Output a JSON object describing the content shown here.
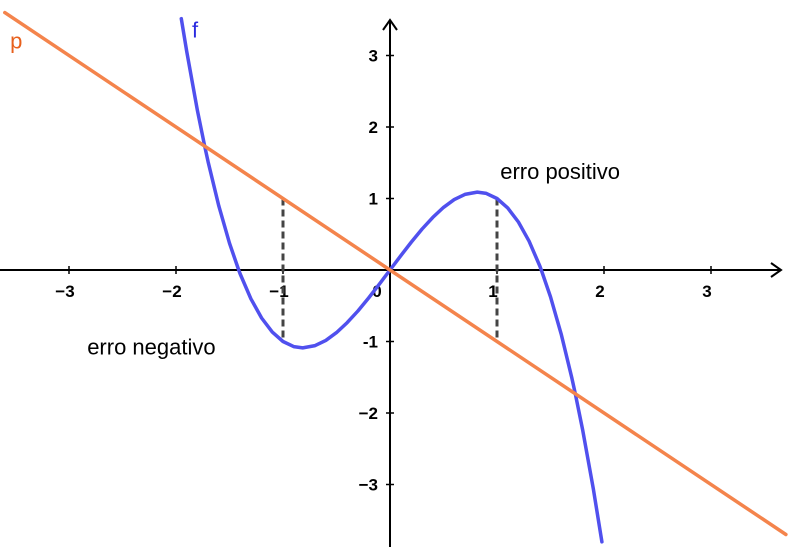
{
  "chart_data": {
    "type": "line",
    "xlim": [
      -3.5,
      3.6
    ],
    "ylim": [
      -3.6,
      3.5
    ],
    "grid": false,
    "x_ticks": [
      {
        "value": -3,
        "label": "−3"
      },
      {
        "value": -2,
        "label": "−2"
      },
      {
        "value": -1,
        "label": "−1"
      },
      {
        "value": 0,
        "label": "0"
      },
      {
        "value": 1,
        "label": "1"
      },
      {
        "value": 2,
        "label": "2"
      },
      {
        "value": 3,
        "label": "3"
      }
    ],
    "y_ticks": [
      {
        "value": 3,
        "label": "3"
      },
      {
        "value": 2,
        "label": "2"
      },
      {
        "value": 1,
        "label": "1"
      },
      {
        "value": -1,
        "label": "-1"
      },
      {
        "value": -2,
        "label": "−2"
      },
      {
        "value": -3,
        "label": "−3"
      }
    ],
    "series": [
      {
        "name": "f",
        "color": "#5050ee",
        "x": [
          -1.95,
          -1.9,
          -1.8,
          -1.732,
          -1.7,
          -1.6,
          -1.5,
          -1.414,
          -1.4,
          -1.3,
          -1.2,
          -1.1,
          -1.0,
          -0.9,
          -0.816,
          -0.7,
          -0.6,
          -0.5,
          -0.4,
          -0.3,
          -0.2,
          -0.1,
          0.0,
          0.1,
          0.2,
          0.3,
          0.4,
          0.5,
          0.6,
          0.7,
          0.816,
          0.9,
          1.0,
          1.1,
          1.2,
          1.3,
          1.4,
          1.414,
          1.5,
          1.6,
          1.7,
          1.732,
          1.8,
          1.9,
          1.98
        ],
        "y": [
          3.515,
          3.059,
          2.232,
          1.732,
          1.513,
          0.896,
          0.375,
          0.0,
          -0.056,
          -0.403,
          -0.672,
          -0.869,
          -1.0,
          -1.072,
          -1.089,
          -1.057,
          -0.984,
          -0.875,
          -0.736,
          -0.573,
          -0.392,
          -0.199,
          0.0,
          0.199,
          0.392,
          0.573,
          0.736,
          0.875,
          0.984,
          1.057,
          1.089,
          1.072,
          1.0,
          0.869,
          0.672,
          0.403,
          0.056,
          0.0,
          -0.375,
          -0.896,
          -1.513,
          -1.732,
          -2.232,
          -3.059,
          -3.802
        ]
      },
      {
        "name": "p",
        "color": "#f4844c",
        "x": [
          -3.6,
          3.7
        ],
        "y": [
          3.6,
          -3.7
        ]
      }
    ],
    "error_segments": [
      {
        "x": -1,
        "y1": 1,
        "y2": -1
      },
      {
        "x": 1,
        "y1": 1,
        "y2": -1
      }
    ],
    "annotations": [
      {
        "text": "erro positivo",
        "x": 1.03,
        "y": 1.27
      },
      {
        "text": "erro negativo",
        "x": -2.83,
        "y": -1.18
      }
    ],
    "curve_labels": [
      {
        "text": "f",
        "color": "#2a2adf",
        "x": -1.85,
        "y": 3.25
      },
      {
        "text": "p",
        "color": "#e8601c",
        "x": -3.55,
        "y": 3.1
      }
    ]
  }
}
